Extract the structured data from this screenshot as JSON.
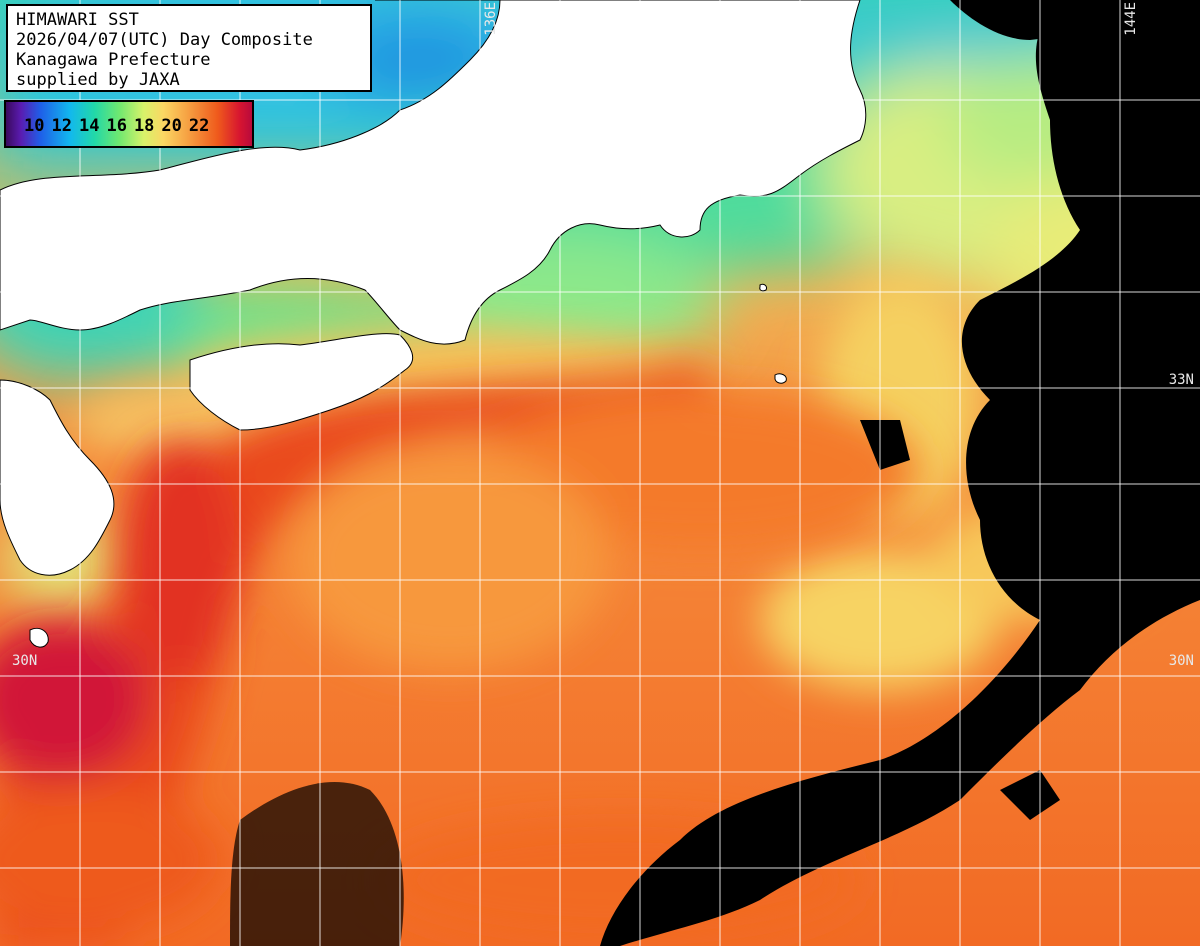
{
  "title": {
    "line1": "HIMAWARI SST",
    "line2": "2026/04/07(UTC) Day Composite",
    "line3": "Kanagawa Prefecture",
    "line4": "supplied by JAXA"
  },
  "legend": {
    "ticks": [
      "10",
      "12",
      "14",
      "16",
      "18",
      "20",
      "22"
    ],
    "colors": [
      "#3a0a5e",
      "#1f5fe8",
      "#12b8ee",
      "#6fe870",
      "#fbd763",
      "#ef5a1c",
      "#b80a3c"
    ]
  },
  "grid_labels": {
    "lon_136": "136E",
    "lon_144": "144E",
    "lat_33_right": "33N",
    "lat_30_left": "30N",
    "lat_30_right": "30N"
  },
  "colors": {
    "land": "#ffffff",
    "no_data": "#000000",
    "grid": "#ffffff"
  }
}
